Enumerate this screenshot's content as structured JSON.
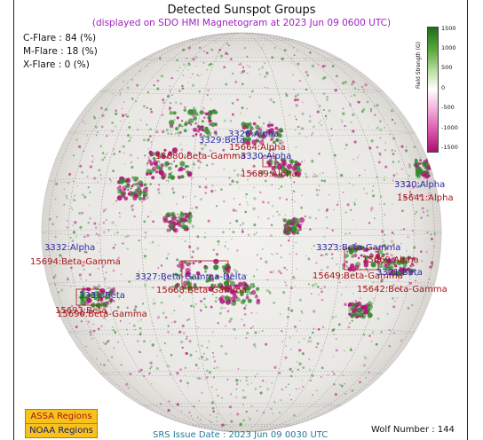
{
  "title": "Detected Sunspot Groups",
  "subtitle": "(displayed on SDO HMI Magnetogram at 2023 Jun 09 0600 UTC)",
  "flare_probabilities": [
    {
      "label": "C-Flare : 84 (%)"
    },
    {
      "label": "M-Flare : 18 (%)"
    },
    {
      "label": "X-Flare :  0 (%)"
    }
  ],
  "colorbar": {
    "label": "Field Strength (G)",
    "ticks": [
      "1500",
      "1000",
      "500",
      "0",
      "-500",
      "-1000",
      "-1500"
    ],
    "colors": {
      "positive": "#2e8b2a",
      "negative": "#b0157a"
    }
  },
  "regions": [
    {
      "noaa": "3329:Beta",
      "assa": "15680:Beta-Gamma"
    },
    {
      "noaa": "3326:Alpha",
      "assa": "15664:Alpha"
    },
    {
      "noaa": "3330:Alpha",
      "assa": "15689:Alpha"
    },
    {
      "noaa": "3320:Alpha",
      "assa": "15641:Alpha"
    },
    {
      "noaa": "3332:Alpha",
      "assa": "15694:Beta-Gamma"
    },
    {
      "noaa": "3327:Beta-Gamma-Delta",
      "assa": "15668:Beta-Gamma"
    },
    {
      "noaa": "3323:Beta-Gamma",
      "assa": "15649:Beta-Gamma"
    },
    {
      "noaa": "3321:Beta",
      "assa": "15642:Beta-Gamma"
    },
    {
      "noaa": "3331:Beta",
      "assa": "15690:Beta-Gamma"
    }
  ],
  "extra_labels": {
    "assa_15669": "15669:Alpha",
    "assa_15693": "15693:Beta"
  },
  "legend": {
    "assa": "ASSA Regions",
    "noaa": "NOAA Regions"
  },
  "srs_issue": "SRS Issue Date : 2023 Jun 09 0030 UTC",
  "wolf_number": "Wolf Number : 144"
}
